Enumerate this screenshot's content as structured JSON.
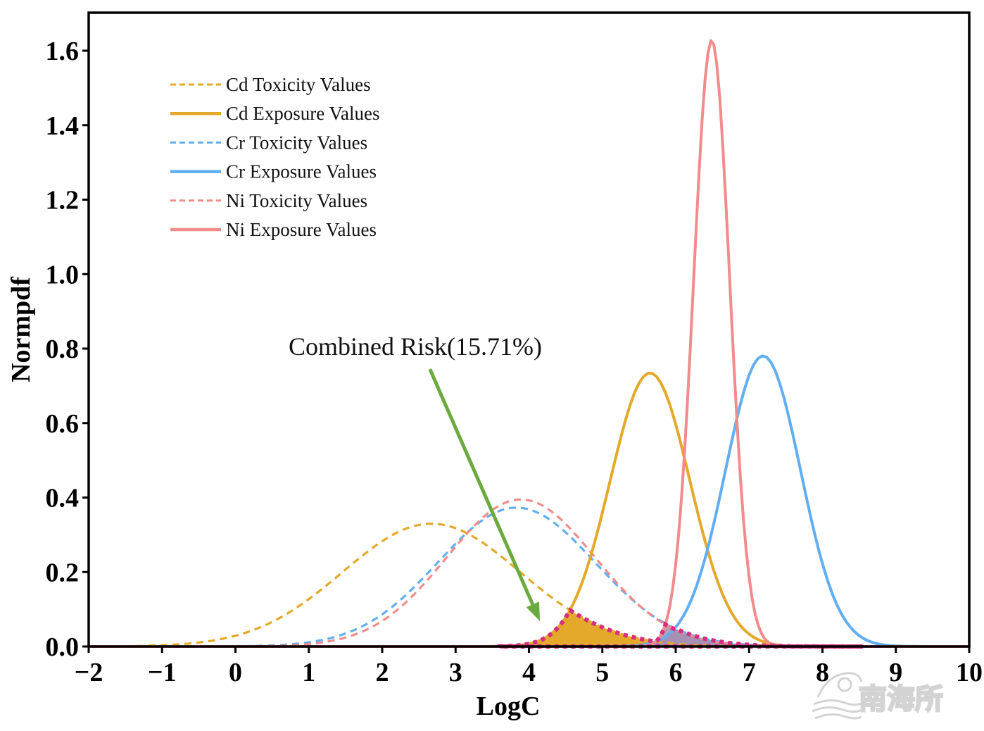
{
  "chart_data": {
    "type": "line",
    "title": "",
    "xlabel": "LogC",
    "ylabel": "Normpdf",
    "xlim": [
      -2,
      10
    ],
    "ylim": [
      0,
      1.7
    ],
    "x_ticks": [
      -2,
      -1,
      0,
      1,
      2,
      3,
      4,
      5,
      6,
      7,
      8,
      9,
      10
    ],
    "x_tick_labels": [
      "−2",
      "−1",
      "0",
      "1",
      "2",
      "3",
      "4",
      "5",
      "6",
      "7",
      "8",
      "9",
      "10"
    ],
    "y_ticks": [
      0,
      0.2,
      0.4,
      0.6,
      0.8,
      1.0,
      1.2,
      1.4,
      1.6
    ],
    "y_tick_labels": [
      "0.0",
      "0.2",
      "0.4",
      "0.6",
      "0.8",
      "1.0",
      "1.2",
      "1.4",
      "1.6"
    ],
    "grid": false,
    "legend_position": "top-left",
    "series": [
      {
        "name": "Cd Toxicity Values",
        "style": "dashed",
        "color": "#E4A92A",
        "distribution": "normal",
        "mean": 2.67,
        "sd": 1.21,
        "peak": 0.33
      },
      {
        "name": "Cd Exposure Values",
        "style": "solid",
        "color": "#E4A92A",
        "distribution": "normal",
        "mean": 5.65,
        "sd": 0.543,
        "peak": 0.735
      },
      {
        "name": "Cr Toxicity Values",
        "style": "dashed",
        "color": "#62AEF0",
        "distribution": "normal",
        "mean": 3.83,
        "sd": 1.07,
        "peak": 0.373
      },
      {
        "name": "Cr Exposure Values",
        "style": "solid",
        "color": "#62AEF0",
        "distribution": "normal",
        "mean": 7.19,
        "sd": 0.511,
        "peak": 0.78
      },
      {
        "name": "Ni Toxicity Values",
        "style": "dashed",
        "color": "#F28B8B",
        "distribution": "normal",
        "mean": 3.89,
        "sd": 1.01,
        "peak": 0.395
      },
      {
        "name": "Ni Exposure Values",
        "style": "solid",
        "color": "#F28B8B",
        "distribution": "normal",
        "mean": 6.49,
        "sd": 0.245,
        "peak": 1.63
      }
    ],
    "overlap_region": {
      "x_range": [
        3.6,
        8.55
      ],
      "outline_color": "#D62F7F"
    },
    "annotation": {
      "text": "Combined Risk(15.71%)",
      "arrow_color": "#6BAA3F",
      "arrow_from": [
        2.65,
        0.745
      ],
      "arrow_to": [
        4.15,
        0.068
      ]
    }
  },
  "watermark": {
    "text": "南海所"
  }
}
